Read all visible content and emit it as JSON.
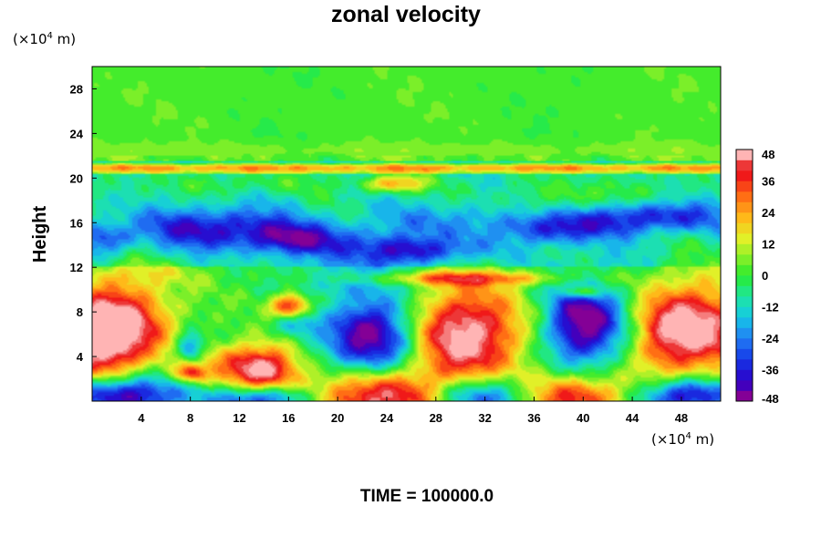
{
  "chart_data": {
    "type": "heatmap",
    "title": "zonal velocity",
    "ylabel": "Height",
    "xlabel": "",
    "x_unit": {
      "prefix": "(×10",
      "exp": "4",
      "suffix": " m)"
    },
    "y_unit": {
      "prefix": "(×10",
      "exp": "4",
      "suffix": " m)"
    },
    "xlim": [
      0,
      51.2
    ],
    "ylim": [
      0,
      30
    ],
    "x_ticks": [
      4,
      8,
      12,
      16,
      20,
      24,
      28,
      32,
      36,
      40,
      44,
      48
    ],
    "y_ticks": [
      4,
      8,
      12,
      16,
      20,
      24,
      28
    ],
    "colorbar": {
      "min": -48,
      "max": 48,
      "step": 4,
      "ticks": [
        48,
        36,
        24,
        12,
        0,
        -12,
        -24,
        -36,
        -48
      ]
    },
    "features": [
      {
        "x": 2.0,
        "y": 7.0,
        "sx": 3.0,
        "sy": 2.6,
        "v": 52
      },
      {
        "x": 0.4,
        "y": 4.5,
        "sx": 2.2,
        "sy": 2.4,
        "v": 30
      },
      {
        "x": 49.5,
        "y": 6.5,
        "sx": 3.0,
        "sy": 3.0,
        "v": 48
      },
      {
        "x": 46.5,
        "y": 6.0,
        "sx": 1.8,
        "sy": 2.5,
        "v": 20
      },
      {
        "x": 30.0,
        "y": 6.0,
        "sx": 3.6,
        "sy": 3.0,
        "v": 56
      },
      {
        "x": 24.0,
        "y": 0.4,
        "sx": 4.8,
        "sy": 1.7,
        "v": 52
      },
      {
        "x": 38.5,
        "y": 0.4,
        "sx": 3.6,
        "sy": 1.4,
        "v": 48
      },
      {
        "x": 14.0,
        "y": 2.8,
        "sx": 2.0,
        "sy": 1.5,
        "v": 46
      },
      {
        "x": 16.2,
        "y": 8.5,
        "sx": 1.1,
        "sy": 0.8,
        "v": 44
      },
      {
        "x": 8.0,
        "y": 2.5,
        "sx": 0.9,
        "sy": 0.6,
        "v": 32
      },
      {
        "x": 11.0,
        "y": 3.5,
        "sx": 2.5,
        "sy": 1.4,
        "v": 16
      },
      {
        "x": 23.0,
        "y": 6.0,
        "sx": 3.0,
        "sy": 2.8,
        "v": -54
      },
      {
        "x": 40.0,
        "y": 7.0,
        "sx": 2.3,
        "sy": 2.6,
        "v": -54
      },
      {
        "x": 2.0,
        "y": 0.5,
        "sx": 3.6,
        "sy": 1.2,
        "v": -50
      },
      {
        "x": 14.0,
        "y": 0.2,
        "sx": 2.8,
        "sy": 0.9,
        "v": -44
      },
      {
        "x": 32.0,
        "y": 0.4,
        "sx": 3.8,
        "sy": 1.3,
        "v": -52
      },
      {
        "x": 48.5,
        "y": 0.5,
        "sx": 2.8,
        "sy": 1.1,
        "v": -48
      },
      {
        "x": 8.0,
        "y": 4.8,
        "sx": 0.8,
        "sy": 0.9,
        "v": -34
      },
      {
        "x": 16.5,
        "y": 7.0,
        "sx": 1.2,
        "sy": 0.8,
        "v": -20
      },
      {
        "x": 10.0,
        "y": 15.5,
        "sx": 4.5,
        "sy": 1.3,
        "v": -32
      },
      {
        "x": 17.0,
        "y": 14.5,
        "sx": 3.0,
        "sy": 1.0,
        "v": -30
      },
      {
        "x": 26.0,
        "y": 13.5,
        "sx": 4.0,
        "sy": 0.9,
        "v": -30
      },
      {
        "x": 38.0,
        "y": 15.5,
        "sx": 3.0,
        "sy": 1.0,
        "v": -28
      },
      {
        "x": 46.0,
        "y": 16.5,
        "sx": 4.0,
        "sy": 1.0,
        "v": -30
      },
      {
        "x": 1.0,
        "y": 14.5,
        "sx": 1.5,
        "sy": 1.0,
        "v": -22
      },
      {
        "x": 28.0,
        "y": 16.0,
        "sx": 4.0,
        "sy": 1.2,
        "v": -14
      },
      {
        "x": 20.0,
        "y": 11.0,
        "sx": 3.0,
        "sy": 1.0,
        "v": -14
      },
      {
        "x": 24.5,
        "y": 19.5,
        "sx": 1.8,
        "sy": 0.55,
        "v": 34
      },
      {
        "x": 30.0,
        "y": 11.0,
        "sx": 7.0,
        "sy": 0.45,
        "v": 26
      },
      {
        "x": 40.0,
        "y": 9.8,
        "sx": 1.0,
        "sy": 0.4,
        "v": 34
      },
      {
        "x": 12.0,
        "y": 19.5,
        "sx": 5.0,
        "sy": 0.7,
        "v": 8
      },
      {
        "x": 41.0,
        "y": 18.5,
        "sx": 5.0,
        "sy": 1.0,
        "v": 10
      },
      {
        "x": 4.0,
        "y": 11.5,
        "sx": 4.0,
        "sy": 0.8,
        "v": 8
      },
      {
        "x": 20.0,
        "y": 8.0,
        "sx": 1.6,
        "sy": 1.2,
        "v": 8
      }
    ]
  },
  "footer": {
    "time_label": "TIME = 100000.0"
  }
}
